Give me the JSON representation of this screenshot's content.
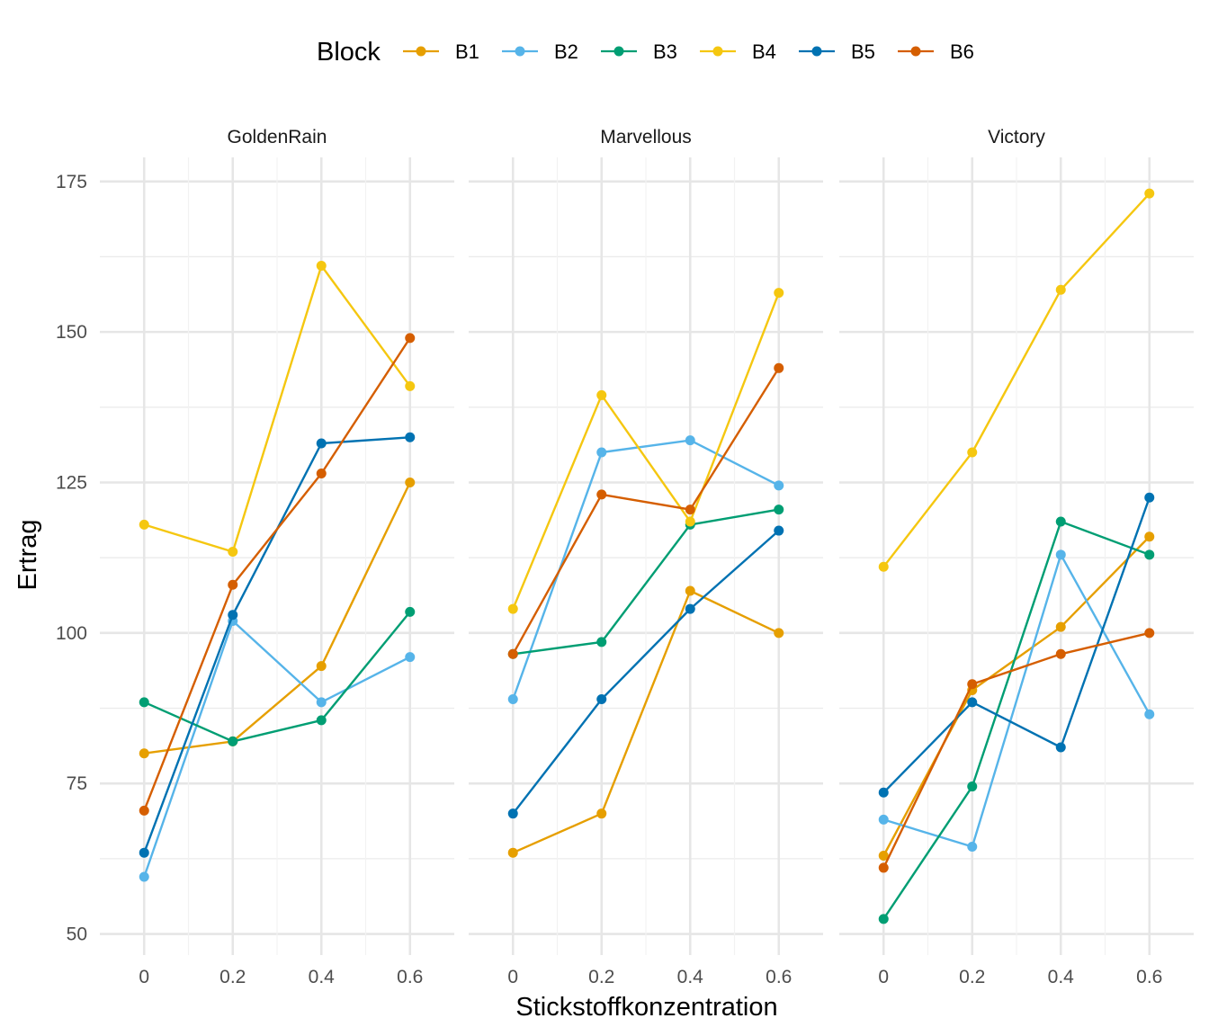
{
  "chart_data": {
    "type": "line",
    "xlabel": "Stickstoffkonzentration",
    "ylabel": "Ertrag",
    "legend_title": "Block",
    "legend_position": "top",
    "grid": true,
    "x": [
      0,
      0.2,
      0.4,
      0.6
    ],
    "x_tick_labels": [
      "0",
      "0.2",
      "0.4",
      "0.6"
    ],
    "xlim": [
      -0.1,
      0.7
    ],
    "ylim": [
      46.5,
      179
    ],
    "y_ticks": [
      50,
      75,
      100,
      125,
      150,
      175
    ],
    "y_tick_labels": [
      "50",
      "75",
      "100",
      "125",
      "150",
      "175"
    ],
    "colors": {
      "B1": "#E69F00",
      "B2": "#56B4E9",
      "B3": "#009E73",
      "B4": "#F5C710",
      "B5": "#0072B2",
      "B6": "#D55E00"
    },
    "series_names": [
      "B1",
      "B2",
      "B3",
      "B4",
      "B5",
      "B6"
    ],
    "panels": [
      {
        "title": "GoldenRain",
        "series": [
          {
            "name": "B1",
            "values": [
              80,
              82,
              94.5,
              125
            ]
          },
          {
            "name": "B2",
            "values": [
              59.5,
              102,
              88.5,
              96
            ]
          },
          {
            "name": "B3",
            "values": [
              88.5,
              82,
              85.5,
              103.5
            ]
          },
          {
            "name": "B4",
            "values": [
              118,
              113.5,
              161,
              141
            ]
          },
          {
            "name": "B5",
            "values": [
              63.5,
              103,
              131.5,
              132.5
            ]
          },
          {
            "name": "B6",
            "values": [
              70.5,
              108,
              126.5,
              149
            ]
          }
        ]
      },
      {
        "title": "Marvellous",
        "series": [
          {
            "name": "B1",
            "values": [
              63.5,
              70,
              107,
              100
            ]
          },
          {
            "name": "B2",
            "values": [
              89,
              130,
              132,
              124.5
            ]
          },
          {
            "name": "B3",
            "values": [
              96.5,
              98.5,
              118,
              120.5
            ]
          },
          {
            "name": "B4",
            "values": [
              104,
              139.5,
              118.5,
              156.5
            ]
          },
          {
            "name": "B5",
            "values": [
              70,
              89,
              104,
              117
            ]
          },
          {
            "name": "B6",
            "values": [
              96.5,
              123,
              120.5,
              144
            ]
          }
        ]
      },
      {
        "title": "Victory",
        "series": [
          {
            "name": "B1",
            "values": [
              63,
              90.5,
              101,
              116
            ]
          },
          {
            "name": "B2",
            "values": [
              69,
              64.5,
              113,
              86.5
            ]
          },
          {
            "name": "B3",
            "values": [
              52.5,
              74.5,
              118.5,
              113
            ]
          },
          {
            "name": "B4",
            "values": [
              111,
              130,
              157,
              173
            ]
          },
          {
            "name": "B5",
            "values": [
              73.5,
              88.5,
              81,
              122.5
            ]
          },
          {
            "name": "B6",
            "values": [
              61,
              91.5,
              96.5,
              100
            ]
          }
        ]
      }
    ]
  }
}
